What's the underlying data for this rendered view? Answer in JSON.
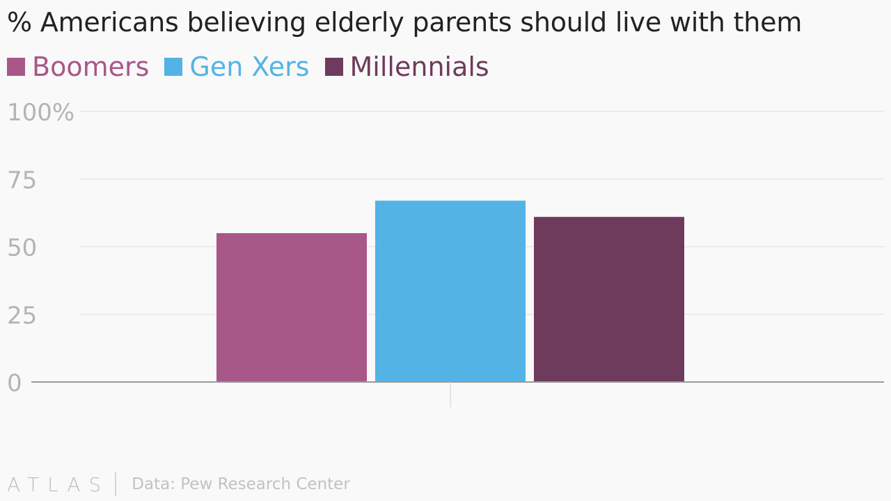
{
  "chart_data": {
    "type": "bar",
    "title": "% Americans believing elderly parents should live with them",
    "categories": [
      ""
    ],
    "series": [
      {
        "name": "Boomers",
        "color": "#a85789",
        "values": [
          55
        ]
      },
      {
        "name": "Gen Xers",
        "color": "#53b3e4",
        "values": [
          67
        ]
      },
      {
        "name": "Millennials",
        "color": "#6e3b5c",
        "values": [
          61
        ]
      }
    ],
    "ylim": [
      0,
      100
    ],
    "yticks": [
      0,
      25,
      50,
      75,
      100
    ],
    "ytick_labels": [
      "0",
      "25",
      "50",
      "75",
      "100%"
    ],
    "grid": true,
    "legend_position": "top-left",
    "xlabel": "",
    "ylabel": ""
  },
  "footer": {
    "logo": "ATLAS",
    "source": "Data: Pew Research Center"
  }
}
